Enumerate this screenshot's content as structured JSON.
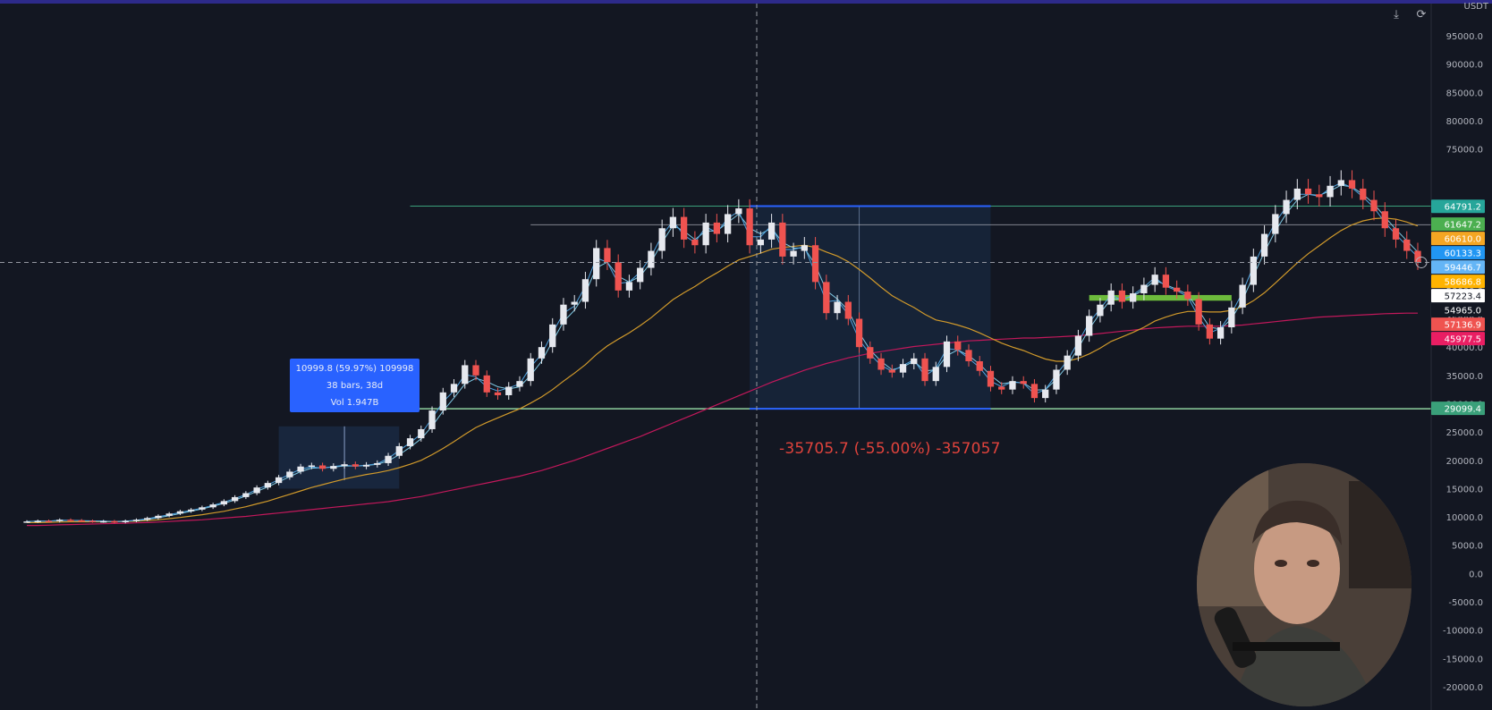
{
  "colors": {
    "background": "#131722",
    "up": "#e6e8ee",
    "down": "#ef5350",
    "ma_fast": "#4fa3e0",
    "ma_mid": "#7ec8e3",
    "ma_slow": "#d19a2b",
    "ma_long": "#c2185b",
    "range_line": "#3aa07a",
    "zone": "#1e3a5f",
    "measure": "#2962ff",
    "drop_text": "#e0433c",
    "green_zone": "#6dbb3c"
  },
  "header": {
    "unit": "USDT"
  },
  "controls": {
    "download_icon": "download-icon",
    "refresh_icon": "refresh-icon"
  },
  "measure_tooltip": {
    "line1": "10999.8 (59.97%) 109998",
    "line2": "38 bars, 38d",
    "line3": "Vol 1.947B"
  },
  "drop_label": "-35705.7 (-55.00%) -357057",
  "price_axis": {
    "ticks": [
      "95000.0",
      "90000.0",
      "85000.0",
      "80000.0",
      "75000.0",
      "50000.0",
      "45000.0",
      "40000.0",
      "35000.0",
      "30000.0",
      "25000.0",
      "20000.0",
      "15000.0",
      "10000.0",
      "5000.0",
      "0.0",
      "-5000.0",
      "-10000.0",
      "-15000.0",
      "-20000.0"
    ],
    "tags": [
      {
        "value": "64791.2",
        "bg": "#26a69a",
        "fg": "#ffffff"
      },
      {
        "value": "61647.2",
        "bg": "#4caf50",
        "fg": "#ffffff"
      },
      {
        "value": "60610.0",
        "bg": "#f5a623",
        "fg": "#ffffff"
      },
      {
        "value": "60133.3",
        "bg": "#2196f3",
        "fg": "#ffffff"
      },
      {
        "value": "59446.7",
        "bg": "#64b5f6",
        "fg": "#ffffff"
      },
      {
        "value": "58686.8",
        "bg": "#ffb300",
        "fg": "#ffffff"
      },
      {
        "value": "57223.4",
        "bg": "#ffffff",
        "fg": "#131722"
      },
      {
        "value": "54965.0",
        "bg": "#131722",
        "fg": "#ffffff"
      },
      {
        "value": "57136.9",
        "bg": "#ef5350",
        "fg": "#ffffff"
      },
      {
        "value": "45977.5",
        "bg": "#e91e63",
        "fg": "#ffffff"
      },
      {
        "value": "29099.4",
        "bg": "#3aa07a",
        "fg": "#ffffff"
      }
    ]
  },
  "chart_data": {
    "type": "candlestick",
    "ylabel": "USDT",
    "ylim": [
      -20000,
      98000
    ],
    "grid": false,
    "levels": {
      "range_high": 64900,
      "range_mid": 61600,
      "range_low": 29099.4,
      "crosshair_price": 54965.0
    },
    "closes": [
      9200,
      9300,
      9250,
      9500,
      9400,
      9300,
      9200,
      9250,
      9100,
      9300,
      9500,
      9800,
      10200,
      10600,
      11000,
      11300,
      11700,
      12200,
      12800,
      13500,
      14200,
      15200,
      16000,
      17000,
      18000,
      18900,
      19100,
      18500,
      19000,
      19300,
      18900,
      19200,
      19500,
      20800,
      22500,
      23900,
      25500,
      28800,
      32000,
      33500,
      36800,
      35000,
      32000,
      31500,
      33000,
      34000,
      38000,
      40000,
      44000,
      47500,
      48000,
      52000,
      57500,
      55000,
      50000,
      51500,
      54000,
      57000,
      61000,
      63000,
      59000,
      58000,
      62000,
      60000,
      63500,
      64500,
      58000,
      59000,
      62000,
      56000,
      57000,
      58000,
      51500,
      46000,
      48000,
      45000,
      40000,
      38000,
      36000,
      35500,
      37000,
      38000,
      34000,
      36500,
      41000,
      39500,
      37500,
      35800,
      33000,
      32500,
      34000,
      33500,
      31000,
      32500,
      36000,
      38500,
      42000,
      45500,
      47500,
      50000,
      48000,
      49500,
      51000,
      52800,
      50500,
      49800,
      48500,
      44000,
      41500,
      43500,
      47000,
      51000,
      56000,
      60000,
      63500,
      66000,
      68000,
      67000,
      66500,
      68500,
      69500,
      68000,
      66000,
      64000,
      61000,
      59000,
      57000,
      55000
    ],
    "ma_fast": [
      9200,
      9250,
      9250,
      9350,
      9400,
      9350,
      9300,
      9250,
      9200,
      9250,
      9350,
      9550,
      9850,
      10200,
      10600,
      11000,
      11400,
      11900,
      12400,
      13000,
      13700,
      14500,
      15300,
      16200,
      17100,
      18000,
      18600,
      18700,
      18800,
      19000,
      19000,
      19100,
      19300,
      19900,
      21000,
      22300,
      23800,
      26000,
      28700,
      31000,
      33500,
      34500,
      33900,
      33000,
      32600,
      33000,
      35000,
      37500,
      41000,
      44500,
      46500,
      49500,
      54000,
      55000,
      52500,
      51500,
      52500,
      55000,
      58500,
      61500,
      60500,
      59000,
      60500,
      60500,
      62000,
      63500,
      61000,
      60000,
      61000,
      58500,
      57500,
      57500,
      54500,
      50000,
      48500,
      46500,
      42500,
      39500,
      37500,
      36000,
      36500,
      37500,
      35800,
      36000,
      38500,
      39500,
      38500,
      37000,
      35000,
      33500,
      33800,
      33700,
      32400,
      32500,
      34300,
      36700,
      39800,
      43200,
      46000,
      48500,
      48500,
      49000,
      50200,
      51800,
      51000,
      50200,
      49300,
      46500,
      43500,
      43200,
      45000,
      48300,
      52600,
      56800,
      60500,
      63600,
      66000,
      67000,
      66800,
      67600,
      68600,
      68300,
      67000,
      65300,
      63000,
      60800,
      58800,
      56800
    ],
    "ma_slow": [
      9000,
      9000,
      9050,
      9100,
      9150,
      9150,
      9150,
      9150,
      9150,
      9200,
      9250,
      9350,
      9500,
      9700,
      9900,
      10150,
      10400,
      10700,
      11000,
      11400,
      11800,
      12300,
      12800,
      13400,
      14000,
      14600,
      15200,
      15700,
      16200,
      16700,
      17100,
      17500,
      17800,
      18200,
      18700,
      19300,
      20000,
      21000,
      22100,
      23300,
      24600,
      25800,
      26700,
      27500,
      28300,
      29100,
      30100,
      31200,
      32500,
      34000,
      35400,
      36900,
      38700,
      40200,
      41400,
      42500,
      43800,
      45200,
      46800,
      48400,
      49600,
      50700,
      52000,
      53100,
      54300,
      55400,
      56000,
      56600,
      57300,
      57600,
      57800,
      58000,
      57600,
      56800,
      56100,
      55100,
      53700,
      52200,
      50600,
      49100,
      48000,
      47000,
      45800,
      44800,
      44400,
      43900,
      43300,
      42500,
      41600,
      40700,
      40000,
      39400,
      38600,
      37900,
      37500,
      37500,
      38000,
      38800,
      39800,
      41000,
      41800,
      42600,
      43500,
      44600,
      45300,
      45900,
      46300,
      46300,
      46200,
      46200,
      46500,
      47100,
      48200,
      49600,
      51300,
      53100,
      54900,
      56500,
      57900,
      59300,
      60600,
      61600,
      62300,
      62700,
      62800,
      62600,
      62100,
      61400
    ],
    "ma_long": [
      8500,
      8500,
      8550,
      8600,
      8650,
      8700,
      8750,
      8800,
      8850,
      8900,
      8950,
      9000,
      9100,
      9200,
      9300,
      9400,
      9500,
      9650,
      9800,
      9950,
      10100,
      10300,
      10500,
      10700,
      10900,
      11100,
      11300,
      11500,
      11700,
      11900,
      12100,
      12300,
      12500,
      12700,
      13000,
      13300,
      13600,
      14000,
      14400,
      14800,
      15200,
      15600,
      16000,
      16400,
      16800,
      17200,
      17700,
      18200,
      18800,
      19400,
      20000,
      20700,
      21400,
      22100,
      22800,
      23500,
      24200,
      25000,
      25800,
      26600,
      27400,
      28200,
      29000,
      29800,
      30600,
      31400,
      32200,
      33000,
      33800,
      34500,
      35200,
      35900,
      36500,
      37100,
      37600,
      38100,
      38500,
      38900,
      39200,
      39500,
      39800,
      40100,
      40300,
      40500,
      40700,
      40900,
      41100,
      41200,
      41300,
      41400,
      41500,
      41600,
      41600,
      41700,
      41800,
      41900,
      42000,
      42200,
      42400,
      42600,
      42800,
      43000,
      43200,
      43400,
      43500,
      43600,
      43700,
      43700,
      43700,
      43700,
      43800,
      43900,
      44100,
      44300,
      44500,
      44700,
      44900,
      45100,
      45300,
      45400,
      45500,
      45600,
      45700,
      45800,
      45900,
      45950,
      46000,
      46000
    ]
  }
}
